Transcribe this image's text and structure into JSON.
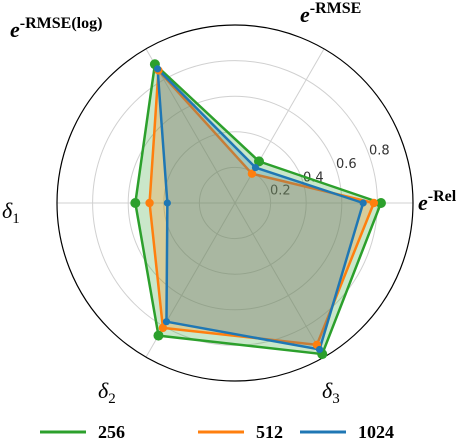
{
  "chart_data": {
    "type": "radar",
    "axes": [
      {
        "base": "e",
        "sup": "-Rel",
        "sub": ""
      },
      {
        "base": "e",
        "sup": "-RMSE",
        "sub": ""
      },
      {
        "base": "e",
        "sup": "-RMSE(log)",
        "sub": ""
      },
      {
        "base": "δ",
        "sup": "",
        "sub": "1"
      },
      {
        "base": "δ",
        "sup": "",
        "sub": "2"
      },
      {
        "base": "δ",
        "sup": "",
        "sub": "3"
      }
    ],
    "rlim": [
      0,
      1
    ],
    "radial_ticks": [
      "0.2",
      "0.4",
      "0.6",
      "0.8"
    ],
    "radial_tick_values": [
      0.2,
      0.4,
      0.6,
      0.8
    ],
    "grid": true,
    "legend_position": "bottom",
    "series": [
      {
        "name": "256",
        "color": "#2ca02c",
        "values": [
          0.82,
          0.27,
          0.9,
          0.56,
          0.86,
          0.98
        ]
      },
      {
        "name": "512",
        "color": "#ff7f0e",
        "values": [
          0.78,
          0.19,
          0.86,
          0.48,
          0.81,
          0.92
        ]
      },
      {
        "name": "1024",
        "color": "#1f77b4",
        "values": [
          0.72,
          0.23,
          0.87,
          0.38,
          0.77,
          0.95
        ]
      }
    ]
  }
}
